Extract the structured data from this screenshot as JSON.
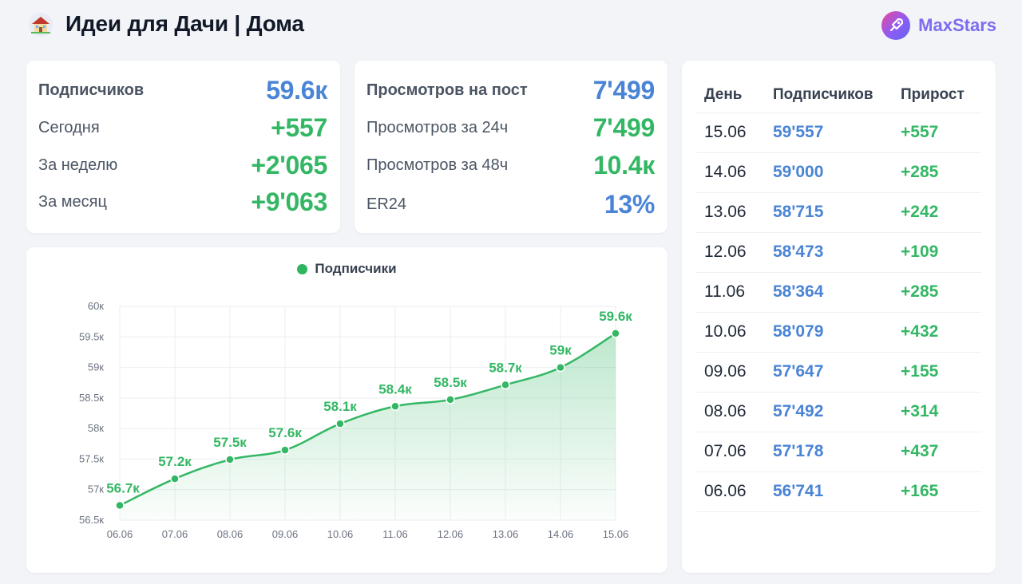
{
  "header": {
    "channel_title": "Идеи для Дачи | Дома",
    "avatar_icon": "house-icon",
    "brand_name": "MaxStars",
    "brand_icon": "rocket-logo-icon"
  },
  "subscribers_card": {
    "rows": [
      {
        "label": "Подписчиков",
        "value": "59.6к",
        "color": "#4a84d6"
      },
      {
        "label": "Сегодня",
        "value": "+557",
        "color": "#34b764"
      },
      {
        "label": "За неделю",
        "value": "+2'065",
        "color": "#34b764"
      },
      {
        "label": "За месяц",
        "value": "+9'063",
        "color": "#34b764"
      }
    ]
  },
  "views_card": {
    "rows": [
      {
        "label": "Просмотров на пост",
        "value": "7'499",
        "color": "#4a84d6"
      },
      {
        "label": "Просмотров за 24ч",
        "value": "7'499",
        "color": "#34b764"
      },
      {
        "label": "Просмотров за 48ч",
        "value": "10.4к",
        "color": "#34b764"
      },
      {
        "label": "ER24",
        "value": "13%",
        "color": "#4a84d6"
      }
    ]
  },
  "chart_data": {
    "type": "area",
    "legend": "Подписчики",
    "legend_position": "top-center",
    "grid": true,
    "categories": [
      "06.06",
      "07.06",
      "08.06",
      "09.06",
      "10.06",
      "11.06",
      "12.06",
      "13.06",
      "14.06",
      "15.06"
    ],
    "series": [
      {
        "name": "Подписчики",
        "values": [
          56741,
          57178,
          57492,
          57647,
          58079,
          58364,
          58473,
          58715,
          59000,
          59557
        ],
        "labels": [
          "56.7к",
          "57.2к",
          "57.5к",
          "57.6к",
          "58.1к",
          "58.4к",
          "58.5к",
          "58.7к",
          "59к",
          "59.6к"
        ]
      }
    ],
    "yticks": [
      56500,
      57000,
      57500,
      58000,
      58500,
      59000,
      59500,
      60000
    ],
    "ytick_labels": [
      "56.5к",
      "57к",
      "57.5к",
      "58к",
      "58.5к",
      "59к",
      "59.5к",
      "60к"
    ],
    "ylim": [
      56500,
      60000
    ],
    "line_color": "#34b764"
  },
  "table": {
    "headers": {
      "day": "День",
      "subs": "Подписчиков",
      "growth": "Прирост"
    },
    "rows": [
      {
        "day": "15.06",
        "subs": "59'557",
        "growth": "+557"
      },
      {
        "day": "14.06",
        "subs": "59'000",
        "growth": "+285"
      },
      {
        "day": "13.06",
        "subs": "58'715",
        "growth": "+242"
      },
      {
        "day": "12.06",
        "subs": "58'473",
        "growth": "+109"
      },
      {
        "day": "11.06",
        "subs": "58'364",
        "growth": "+285"
      },
      {
        "day": "10.06",
        "subs": "58'079",
        "growth": "+432"
      },
      {
        "day": "09.06",
        "subs": "57'647",
        "growth": "+155"
      },
      {
        "day": "08.06",
        "subs": "57'492",
        "growth": "+314"
      },
      {
        "day": "07.06",
        "subs": "57'178",
        "growth": "+437"
      },
      {
        "day": "06.06",
        "subs": "56'741",
        "growth": "+165"
      }
    ]
  }
}
